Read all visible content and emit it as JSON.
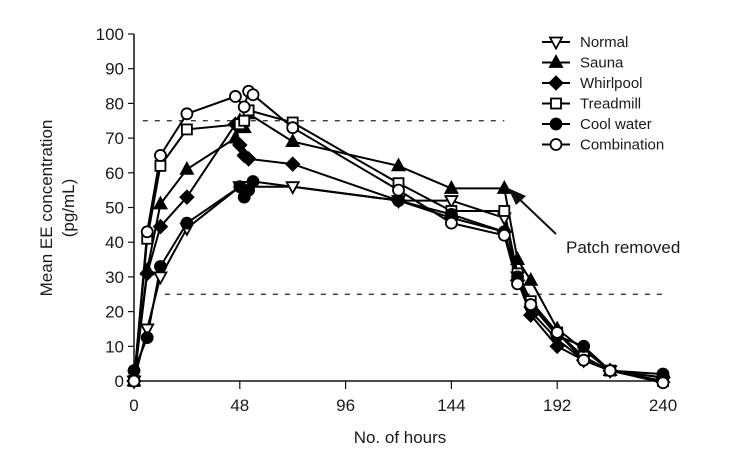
{
  "chart_data": {
    "type": "line",
    "title": "",
    "xlabel": "No. of hours",
    "ylabel_line1": "Mean EE concentration",
    "ylabel_line2": "(pg/mL)",
    "xlim": [
      0,
      240
    ],
    "ylim": [
      0,
      100
    ],
    "x_ticks": [
      0,
      48,
      96,
      144,
      192,
      240
    ],
    "x_tick_labels": [
      "0",
      "48",
      "96",
      "144",
      "192",
      "240"
    ],
    "y_ticks": [
      0,
      10,
      20,
      30,
      40,
      50,
      60,
      70,
      80,
      90,
      100
    ],
    "y_tick_labels": [
      "0",
      "10",
      "20",
      "30",
      "40",
      "50",
      "60",
      "70",
      "80",
      "90",
      "100"
    ],
    "grid": false,
    "legend_position": "top-right",
    "reference_lines": [
      {
        "y": 75,
        "style": "dashed",
        "x_range": [
          4,
          168
        ]
      },
      {
        "y": 25,
        "style": "dashed",
        "x_range": [
          14,
          240
        ]
      }
    ],
    "annotation": {
      "text": "Patch removed",
      "points_to": {
        "x": 170,
        "y": 55
      }
    },
    "series": [
      {
        "name": "Normal",
        "marker": "triangle-down-open",
        "points": [
          [
            0,
            0
          ],
          [
            6,
            15
          ],
          [
            12,
            30
          ],
          [
            24,
            44
          ],
          [
            48,
            56
          ],
          [
            50,
            56
          ],
          [
            52,
            56
          ],
          [
            72,
            56
          ],
          [
            120,
            52
          ],
          [
            144,
            52
          ],
          [
            168,
            47
          ],
          [
            174,
            30
          ],
          [
            180,
            20
          ],
          [
            192,
            12
          ],
          [
            204,
            6
          ],
          [
            216,
            3
          ],
          [
            240,
            0
          ]
        ]
      },
      {
        "name": "Sauna",
        "marker": "triangle-up-filled",
        "points": [
          [
            0,
            0
          ],
          [
            6,
            32
          ],
          [
            12,
            51
          ],
          [
            24,
            61
          ],
          [
            46,
            70
          ],
          [
            48,
            75
          ],
          [
            50,
            73
          ],
          [
            52,
            77
          ],
          [
            72,
            69
          ],
          [
            120,
            62
          ],
          [
            144,
            55.5
          ],
          [
            168,
            55.5
          ],
          [
            174,
            35
          ],
          [
            180,
            29
          ],
          [
            192,
            15
          ],
          [
            204,
            9
          ],
          [
            216,
            3
          ],
          [
            240,
            1
          ]
        ]
      },
      {
        "name": "Whirlpool",
        "marker": "diamond-filled",
        "points": [
          [
            0,
            0
          ],
          [
            6,
            31
          ],
          [
            12,
            44.5
          ],
          [
            24,
            53
          ],
          [
            46,
            74
          ],
          [
            48,
            68
          ],
          [
            50,
            65
          ],
          [
            52,
            64
          ],
          [
            72,
            62.5
          ],
          [
            120,
            52
          ],
          [
            144,
            47
          ],
          [
            168,
            43
          ],
          [
            174,
            29
          ],
          [
            180,
            19
          ],
          [
            192,
            10
          ],
          [
            204,
            6
          ],
          [
            216,
            3
          ],
          [
            240,
            1
          ]
        ]
      },
      {
        "name": "Treadmill",
        "marker": "square-open",
        "points": [
          [
            0,
            0
          ],
          [
            6,
            41
          ],
          [
            12,
            62
          ],
          [
            24,
            72.5
          ],
          [
            48,
            74
          ],
          [
            50,
            75
          ],
          [
            52,
            78
          ],
          [
            72,
            74.5
          ],
          [
            120,
            57
          ],
          [
            144,
            49
          ],
          [
            168,
            49
          ],
          [
            174,
            31
          ],
          [
            180,
            23
          ],
          [
            192,
            14
          ],
          [
            204,
            7
          ],
          [
            216,
            3
          ],
          [
            240,
            0
          ]
        ]
      },
      {
        "name": "Cool water",
        "marker": "circle-filled",
        "points": [
          [
            0,
            3
          ],
          [
            6,
            12.5
          ],
          [
            12,
            33
          ],
          [
            24,
            45.5
          ],
          [
            48,
            56
          ],
          [
            50,
            53
          ],
          [
            52,
            55
          ],
          [
            54,
            57.5
          ],
          [
            120,
            52
          ],
          [
            144,
            48
          ],
          [
            168,
            43
          ],
          [
            174,
            30
          ],
          [
            180,
            22
          ],
          [
            192,
            13
          ],
          [
            204,
            10
          ],
          [
            216,
            3
          ],
          [
            240,
            2
          ]
        ]
      },
      {
        "name": "Combination",
        "marker": "circle-open",
        "points": [
          [
            0,
            0
          ],
          [
            6,
            43
          ],
          [
            12,
            65
          ],
          [
            24,
            77
          ],
          [
            46,
            82
          ],
          [
            50,
            79
          ],
          [
            52,
            83.5
          ],
          [
            54,
            82.5
          ],
          [
            72,
            73
          ],
          [
            120,
            55
          ],
          [
            144,
            45.5
          ],
          [
            168,
            42
          ],
          [
            174,
            28
          ],
          [
            180,
            22
          ],
          [
            192,
            14
          ],
          [
            204,
            6
          ],
          [
            216,
            3
          ],
          [
            240,
            -0.5
          ]
        ]
      }
    ]
  }
}
